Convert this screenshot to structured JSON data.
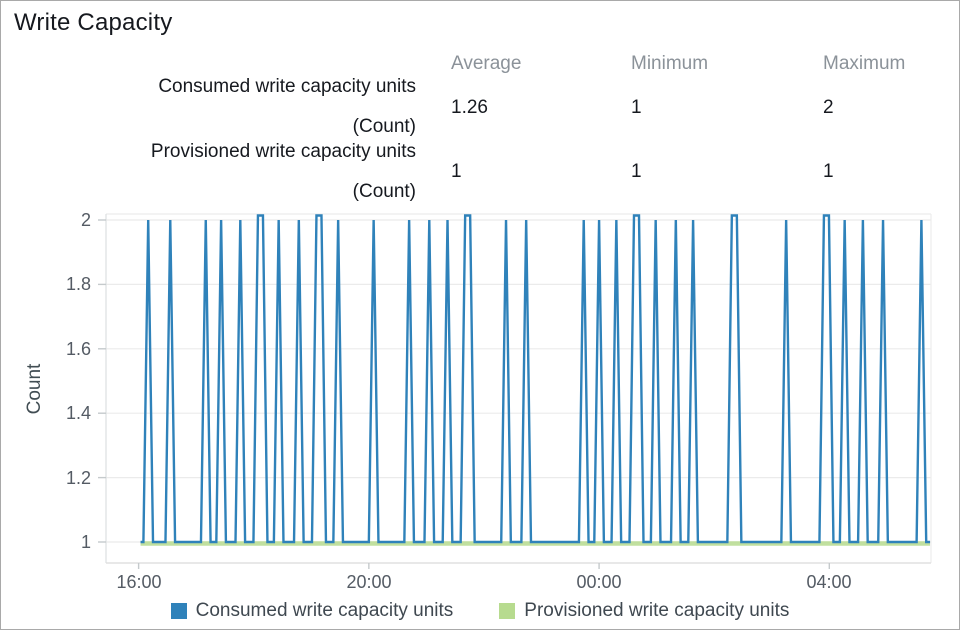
{
  "title": "Write Capacity",
  "stats": {
    "headers": [
      "Average",
      "Minimum",
      "Maximum"
    ],
    "rows": [
      {
        "label": "Consumed write capacity units",
        "unit": "(Count)",
        "average": "1.26",
        "minimum": "1",
        "maximum": "2"
      },
      {
        "label": "Provisioned write capacity units",
        "unit": "(Count)",
        "average": "1",
        "minimum": "1",
        "maximum": "1"
      }
    ]
  },
  "chart_data": {
    "type": "line",
    "title": "Write Capacity",
    "xlabel": "",
    "ylabel": "Count",
    "ylim": [
      1,
      2
    ],
    "grid": "horizontal",
    "legend_position": "bottom",
    "y_tick_labels": [
      "2",
      "1.8",
      "1.6",
      "1.4",
      "1.2",
      "1"
    ],
    "y_tick_values": [
      2,
      1.8,
      1.6,
      1.4,
      1.2,
      1
    ],
    "x_tick_labels": [
      "16:00",
      "20:00",
      "00:00",
      "04:00"
    ],
    "x_tick_minutes": [
      0,
      240,
      480,
      720
    ],
    "x_axis_range_minutes": [
      -34,
      826
    ],
    "data_range_minutes": [
      2,
      825
    ],
    "series": [
      {
        "name": "Consumed write capacity units",
        "color": "#2f82ba",
        "style": "spike-line",
        "baseline_value": 1,
        "spike_value": 2,
        "spikes": [
          {
            "t": 10
          },
          {
            "t": 33
          },
          {
            "t": 70
          },
          {
            "t": 86
          },
          {
            "t": 106
          },
          {
            "t": 127,
            "double": true
          },
          {
            "t": 146
          },
          {
            "t": 167
          },
          {
            "t": 188,
            "double": true
          },
          {
            "t": 208
          },
          {
            "t": 245
          },
          {
            "t": 282
          },
          {
            "t": 303
          },
          {
            "t": 322
          },
          {
            "t": 343,
            "double": true
          },
          {
            "t": 383
          },
          {
            "t": 404
          },
          {
            "t": 464
          },
          {
            "t": 480
          },
          {
            "t": 498
          },
          {
            "t": 519,
            "double": true
          },
          {
            "t": 539
          },
          {
            "t": 560
          },
          {
            "t": 578
          },
          {
            "t": 621,
            "double": true
          },
          {
            "t": 675
          },
          {
            "t": 717,
            "double": true
          },
          {
            "t": 736
          },
          {
            "t": 755
          },
          {
            "t": 776
          },
          {
            "t": 816
          }
        ]
      },
      {
        "name": "Provisioned write capacity units",
        "color": "#b7db8f",
        "style": "flat-line",
        "value": 1
      }
    ]
  },
  "legend": [
    {
      "label": "Consumed write capacity units",
      "color": "#2f82ba"
    },
    {
      "label": "Provisioned write capacity units",
      "color": "#b7db8f"
    }
  ]
}
